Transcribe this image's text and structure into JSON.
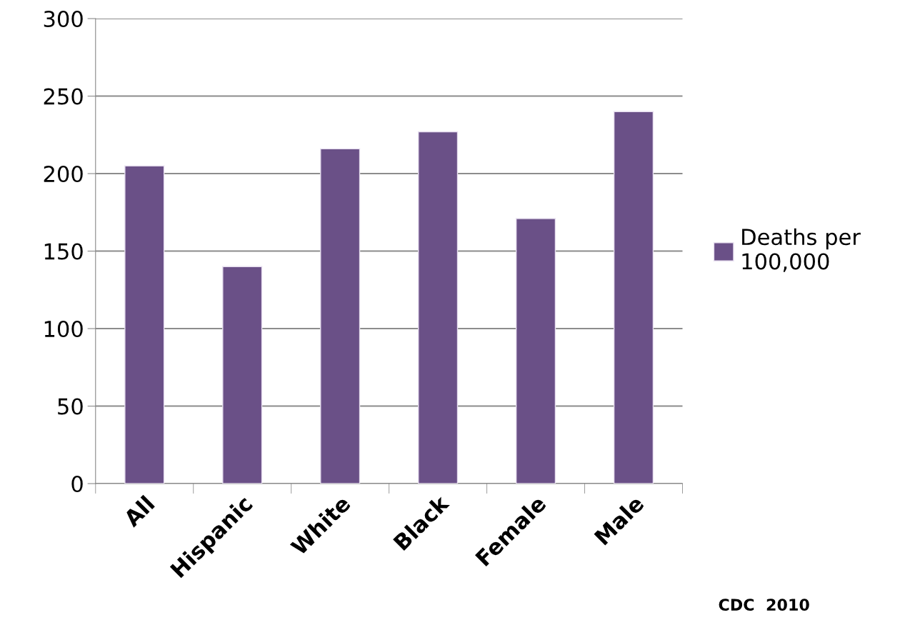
{
  "chart_data": {
    "type": "bar",
    "categories": [
      "All",
      "Hispanic",
      "White",
      "Black",
      "Female",
      "Male"
    ],
    "series": [
      {
        "name": "Deaths per\n100,000",
        "color": "#6a5087",
        "values": [
          205,
          140,
          216,
          227,
          171,
          240
        ]
      }
    ],
    "ylim": [
      0,
      300
    ],
    "yticks": [
      0,
      50,
      100,
      150,
      200,
      250,
      300
    ],
    "grid": "y",
    "legend": "right",
    "annotations": [
      "CDC  2010"
    ]
  }
}
